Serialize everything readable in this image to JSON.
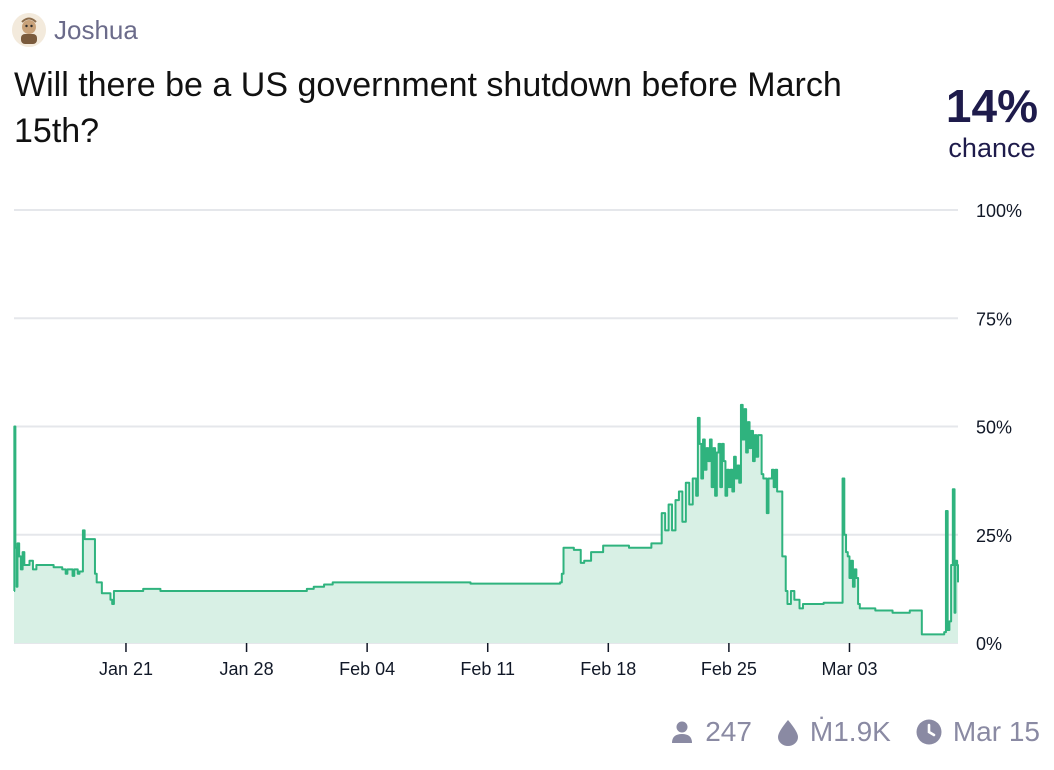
{
  "author": {
    "name": "Joshua",
    "avatar_icon": "avatar-icon"
  },
  "title": "Will there be a US government shutdown before March 15th?",
  "probability": {
    "value": "14%",
    "label": "chance"
  },
  "stats": {
    "traders": "247",
    "volume": "Ṁ1.9K",
    "close_date": "Mar 15"
  },
  "colors": {
    "line": "#2fb37e",
    "fill": "#d8f0e5",
    "grid": "#e5e7eb",
    "text": "#1e1b4b"
  },
  "chart_data": {
    "type": "area",
    "x_unit": "day (0 = Jan 11)",
    "xticks": [
      {
        "x": 10,
        "label": "Jan 21"
      },
      {
        "x": 17,
        "label": "Jan 28"
      },
      {
        "x": 24,
        "label": "Feb 04"
      },
      {
        "x": 31,
        "label": "Feb 11"
      },
      {
        "x": 38,
        "label": "Feb 18"
      },
      {
        "x": 45,
        "label": "Feb 25"
      },
      {
        "x": 52,
        "label": "Mar 03"
      }
    ],
    "yticks": [
      {
        "y": 0,
        "label": "0%"
      },
      {
        "y": 25,
        "label": "25%"
      },
      {
        "y": 50,
        "label": "50%"
      },
      {
        "y": 75,
        "label": "75%"
      },
      {
        "y": 100,
        "label": "100%"
      }
    ],
    "xlim": [
      3.5,
      58.3
    ],
    "ylim": [
      0,
      100
    ],
    "grid": true,
    "series": [
      {
        "points": [
          [
            3.5,
            12
          ],
          [
            3.52,
            50
          ],
          [
            3.58,
            22
          ],
          [
            3.65,
            13
          ],
          [
            3.7,
            23
          ],
          [
            3.8,
            20
          ],
          [
            3.9,
            17
          ],
          [
            4.0,
            21
          ],
          [
            4.1,
            18
          ],
          [
            4.4,
            19
          ],
          [
            4.6,
            17
          ],
          [
            4.8,
            18
          ],
          [
            5.3,
            18
          ],
          [
            5.6,
            18
          ],
          [
            5.8,
            17.5
          ],
          [
            6.0,
            17.5
          ],
          [
            6.3,
            17
          ],
          [
            6.5,
            16
          ],
          [
            6.6,
            17
          ],
          [
            6.8,
            17
          ],
          [
            6.9,
            15.5
          ],
          [
            7.0,
            17
          ],
          [
            7.2,
            16
          ],
          [
            7.3,
            16.5
          ],
          [
            7.5,
            26
          ],
          [
            7.6,
            24
          ],
          [
            8.0,
            24
          ],
          [
            8.2,
            16
          ],
          [
            8.3,
            14
          ],
          [
            8.5,
            14
          ],
          [
            8.6,
            11.5
          ],
          [
            9.0,
            11.5
          ],
          [
            9.1,
            10
          ],
          [
            9.2,
            9
          ],
          [
            9.3,
            12
          ],
          [
            10.0,
            12
          ],
          [
            10.5,
            12
          ],
          [
            11.0,
            12.5
          ],
          [
            12.0,
            12
          ],
          [
            14.0,
            12
          ],
          [
            17.0,
            12
          ],
          [
            20.0,
            12
          ],
          [
            20.4,
            12
          ],
          [
            20.5,
            12.5
          ],
          [
            20.9,
            13
          ],
          [
            21.5,
            13.5
          ],
          [
            22.0,
            14
          ],
          [
            26.0,
            14
          ],
          [
            28.0,
            14
          ],
          [
            30.0,
            13.7
          ],
          [
            35.0,
            13.7
          ],
          [
            35.2,
            14
          ],
          [
            35.3,
            16
          ],
          [
            35.4,
            22
          ],
          [
            36.0,
            21.5
          ],
          [
            36.4,
            18.5
          ],
          [
            36.6,
            19
          ],
          [
            36.9,
            19
          ],
          [
            37.0,
            21
          ],
          [
            37.6,
            21
          ],
          [
            37.7,
            22.5
          ],
          [
            39.0,
            22.5
          ],
          [
            39.2,
            22
          ],
          [
            40.0,
            22
          ],
          [
            40.5,
            23
          ],
          [
            41.0,
            23
          ],
          [
            41.1,
            30
          ],
          [
            41.3,
            26
          ],
          [
            41.5,
            32
          ],
          [
            41.7,
            26
          ],
          [
            41.9,
            33
          ],
          [
            42.1,
            35
          ],
          [
            42.3,
            28
          ],
          [
            42.5,
            37
          ],
          [
            42.7,
            32
          ],
          [
            42.9,
            38
          ],
          [
            43.1,
            34
          ],
          [
            43.2,
            52
          ],
          [
            43.3,
            46
          ],
          [
            43.4,
            38
          ],
          [
            43.5,
            47
          ],
          [
            43.6,
            40
          ],
          [
            43.7,
            45
          ],
          [
            43.8,
            42
          ],
          [
            43.9,
            47
          ],
          [
            44.0,
            36
          ],
          [
            44.1,
            45
          ],
          [
            44.2,
            34
          ],
          [
            44.3,
            44
          ],
          [
            44.4,
            46
          ],
          [
            44.5,
            36
          ],
          [
            44.6,
            46
          ],
          [
            44.7,
            42
          ],
          [
            44.8,
            34
          ],
          [
            44.9,
            40
          ],
          [
            45.0,
            36
          ],
          [
            45.1,
            40
          ],
          [
            45.2,
            35
          ],
          [
            45.3,
            43
          ],
          [
            45.4,
            38
          ],
          [
            45.5,
            41
          ],
          [
            45.6,
            37
          ],
          [
            45.7,
            55
          ],
          [
            45.8,
            47
          ],
          [
            45.9,
            54
          ],
          [
            46.0,
            44
          ],
          [
            46.1,
            51
          ],
          [
            46.2,
            45
          ],
          [
            46.3,
            49
          ],
          [
            46.4,
            42
          ],
          [
            46.5,
            48
          ],
          [
            46.6,
            43
          ],
          [
            46.7,
            48
          ],
          [
            46.8,
            48
          ],
          [
            46.9,
            39
          ],
          [
            47.0,
            38
          ],
          [
            47.2,
            30
          ],
          [
            47.3,
            38
          ],
          [
            47.5,
            40
          ],
          [
            47.6,
            36
          ],
          [
            47.7,
            40
          ],
          [
            47.8,
            35
          ],
          [
            48.0,
            35
          ],
          [
            48.1,
            20
          ],
          [
            48.2,
            20
          ],
          [
            48.3,
            12
          ],
          [
            48.4,
            9
          ],
          [
            48.6,
            12
          ],
          [
            48.8,
            10
          ],
          [
            49.0,
            10
          ],
          [
            49.1,
            8
          ],
          [
            49.3,
            9
          ],
          [
            50.0,
            9
          ],
          [
            50.5,
            9.3
          ],
          [
            51.5,
            9.3
          ],
          [
            51.6,
            38
          ],
          [
            51.7,
            25
          ],
          [
            51.8,
            21
          ],
          [
            51.9,
            20
          ],
          [
            52.0,
            15
          ],
          [
            52.1,
            19
          ],
          [
            52.2,
            13
          ],
          [
            52.3,
            17
          ],
          [
            52.4,
            15
          ],
          [
            52.5,
            9
          ],
          [
            52.6,
            8
          ],
          [
            53.0,
            8
          ],
          [
            53.5,
            7.5
          ],
          [
            54.0,
            7.5
          ],
          [
            54.5,
            7
          ],
          [
            55.0,
            7
          ],
          [
            55.5,
            7.5
          ],
          [
            56.1,
            7.5
          ],
          [
            56.2,
            2
          ],
          [
            57.0,
            2
          ],
          [
            57.3,
            2
          ],
          [
            57.5,
            2.5
          ],
          [
            57.6,
            30.5
          ],
          [
            57.7,
            3
          ],
          [
            57.8,
            5
          ],
          [
            57.9,
            18
          ],
          [
            58.0,
            35.5
          ],
          [
            58.1,
            7
          ],
          [
            58.15,
            19
          ],
          [
            58.25,
            18
          ],
          [
            58.3,
            14
          ]
        ]
      }
    ]
  }
}
